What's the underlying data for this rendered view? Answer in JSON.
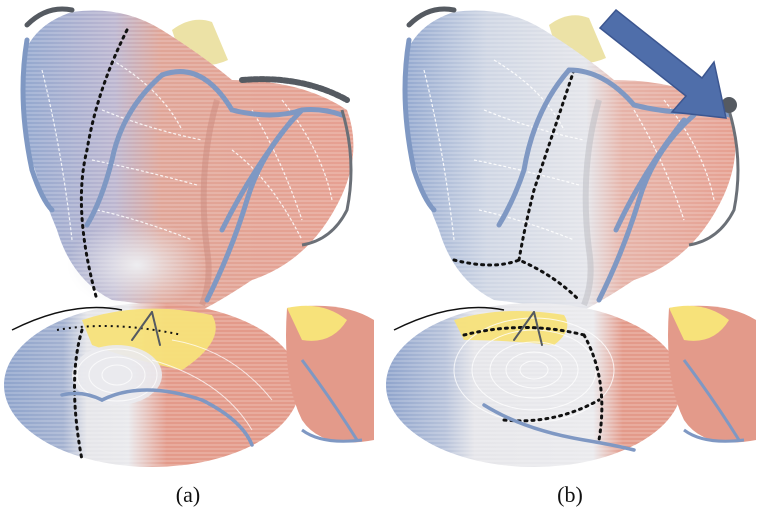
{
  "captions": {
    "a": "(a)",
    "b": "(b)"
  },
  "colors": {
    "pink": "#e7a294",
    "blue": "#93a8cf",
    "gray": "#dcdde2",
    "yellow": "#f7e27a",
    "vessel": "#7f98c3",
    "arrow": "#4f6eaa",
    "dark": "#555a61"
  },
  "icons": {
    "arrow": "arrow-down-right-icon"
  }
}
